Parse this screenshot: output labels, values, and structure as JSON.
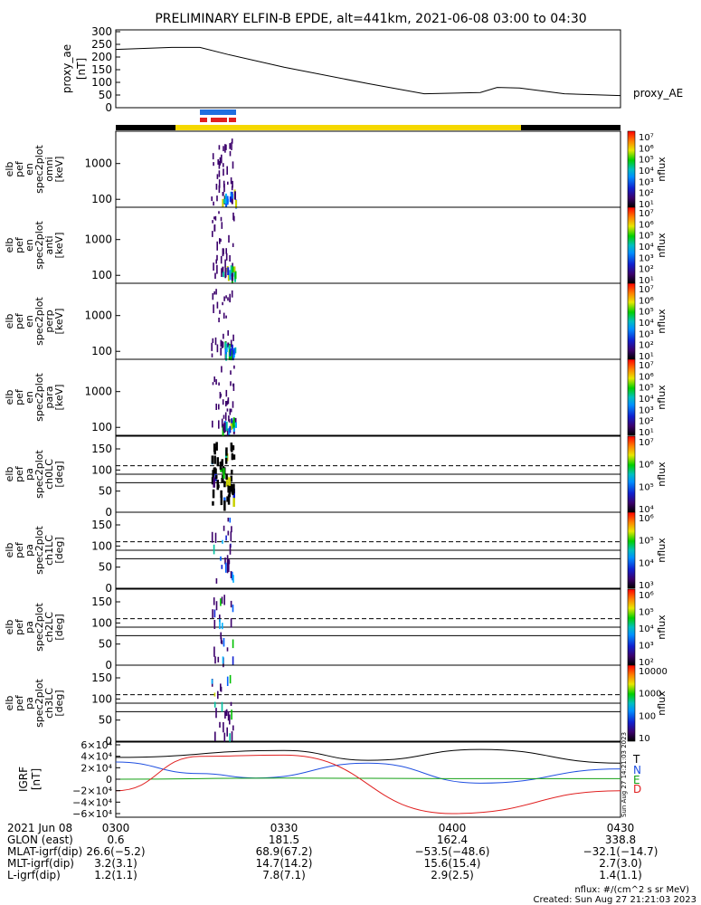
{
  "title": "PRELIMINARY ELFIN-B EPDE, alt=441km, 2021-06-08 03:00 to 04:30",
  "ae": {
    "ylabel": [
      "proxy_ae",
      "[nT]"
    ],
    "ticks": [
      "300",
      "250",
      "200",
      "150",
      "100",
      "50",
      "0"
    ],
    "legend": "proxy_AE"
  },
  "spec_panels": [
    {
      "ylabel": [
        "elb",
        "pef",
        "en",
        "spec2plot",
        "omni",
        "[keV]"
      ],
      "ticks": [
        "1000",
        "100"
      ],
      "cbar_ticks": [
        "10⁷",
        "10⁶",
        "10⁵",
        "10⁴",
        "10³",
        "10²",
        "10¹"
      ],
      "cbar_label": "nflux"
    },
    {
      "ylabel": [
        "elb",
        "pef",
        "en",
        "spec2plot",
        "anti",
        "[keV]"
      ],
      "ticks": [
        "1000",
        "100"
      ],
      "cbar_ticks": [
        "10⁷",
        "10⁶",
        "10⁵",
        "10⁴",
        "10³",
        "10²",
        "10¹"
      ],
      "cbar_label": "nflux"
    },
    {
      "ylabel": [
        "elb",
        "pef",
        "en",
        "spec2plot",
        "perp",
        "[keV]"
      ],
      "ticks": [
        "1000",
        "100"
      ],
      "cbar_ticks": [
        "10⁷",
        "10⁶",
        "10⁵",
        "10⁴",
        "10³",
        "10²",
        "10¹"
      ],
      "cbar_label": "nflux"
    },
    {
      "ylabel": [
        "elb",
        "pef",
        "en",
        "spec2plot",
        "para",
        "[keV]"
      ],
      "ticks": [
        "1000",
        "100"
      ],
      "cbar_ticks": [
        "10⁷",
        "10⁶",
        "10⁵",
        "10⁴",
        "10³",
        "10²",
        "10¹"
      ],
      "cbar_label": "nflux"
    }
  ],
  "pa_panels": [
    {
      "ylabel": [
        "elb",
        "pef",
        "pa",
        "spec2plot",
        "ch0LC",
        "[deg]"
      ],
      "ticks": [
        "150",
        "100",
        "50",
        "0"
      ],
      "cbar_ticks": [
        "10⁷",
        "10⁶",
        "10⁵",
        "10⁴"
      ],
      "cbar_label": "nflux"
    },
    {
      "ylabel": [
        "elb",
        "pef",
        "pa",
        "spec2plot",
        "ch1LC",
        "[deg]"
      ],
      "ticks": [
        "150",
        "100",
        "50",
        "0"
      ],
      "cbar_ticks": [
        "10⁶",
        "10⁵",
        "10⁴",
        "10³"
      ],
      "cbar_label": "nflux"
    },
    {
      "ylabel": [
        "elb",
        "pef",
        "pa",
        "spec2plot",
        "ch2LC",
        "[deg]"
      ],
      "ticks": [
        "150",
        "100",
        "50",
        "0"
      ],
      "cbar_ticks": [
        "10⁶",
        "10⁵",
        "10⁴",
        "10³",
        "10²"
      ],
      "cbar_label": "nflux"
    },
    {
      "ylabel": [
        "elb",
        "pef",
        "pa",
        "spec2plot",
        "ch3LC",
        "[deg]"
      ],
      "ticks": [
        "150",
        "100",
        "50",
        "0"
      ],
      "cbar_ticks": [
        "10000",
        "1000",
        "100",
        "10"
      ],
      "cbar_label": "nflux"
    }
  ],
  "igrf": {
    "ylabel": [
      "IGRF",
      "[nT]"
    ],
    "ticks": [
      "6×10⁴",
      "4×10⁴",
      "2×10⁴",
      "0",
      "−2×10⁴",
      "−4×10⁴",
      "−6×10⁴"
    ],
    "legend": [
      "T",
      "N",
      "E",
      "D"
    ],
    "stamp": "Sun Aug 27 14:21:03 2023"
  },
  "footer": {
    "rows": [
      [
        "2021 Jun 08",
        "0300",
        "0330",
        "0400",
        "0430"
      ],
      [
        "GLON (east)",
        "0.6",
        "181.5",
        "162.4",
        "338.8"
      ],
      [
        "MLAT-igrf(dip)",
        "26.6(−5.2)",
        "68.9(67.2)",
        "−53.5(−48.6)",
        "−32.1(−14.7)"
      ],
      [
        "MLT-igrf(dip)",
        "3.2(3.1)",
        "14.7(14.2)",
        "15.6(15.4)",
        "2.7(3.0)"
      ],
      [
        "L-igrf(dip)",
        "1.2(1.1)",
        "7.8(7.1)",
        "2.9(2.5)",
        "1.4(1.1)"
      ]
    ],
    "unit_note": "nflux: #/(cm^2 s sr MeV)",
    "created": "Created: Sun Aug 27 21:21:03 2023"
  },
  "colors": {
    "blue": "#1f6fe0",
    "red": "#e02020",
    "yellow": "#f5d800",
    "black": "#000000",
    "green": "#14a014"
  },
  "chart_data": [
    {
      "type": "line",
      "name": "proxy_ae",
      "x": [
        "0300",
        "0310",
        "0315",
        "0320",
        "0330",
        "0345",
        "0355",
        "0405",
        "0408",
        "0412",
        "0420",
        "0430"
      ],
      "values": [
        230,
        238,
        238,
        210,
        160,
        95,
        55,
        60,
        80,
        78,
        55,
        48
      ],
      "ylim": [
        0,
        300
      ]
    },
    {
      "type": "heatmap",
      "name": "ELFIN-B spectrograms",
      "xlim": [
        "0300",
        "0430"
      ],
      "active_window": [
        "0317",
        "0321"
      ]
    },
    {
      "type": "line",
      "name": "IGRF",
      "ylim": [
        -60000,
        60000
      ],
      "series": [
        {
          "name": "T",
          "x": [
            "0300",
            "0330",
            "0345",
            "0405",
            "0430"
          ],
          "values": [
            38000,
            50000,
            33000,
            52000,
            28000
          ]
        },
        {
          "name": "N",
          "x": [
            "0300",
            "0315",
            "0325",
            "0345",
            "0405",
            "0430"
          ],
          "values": [
            30000,
            10000,
            2000,
            28000,
            -7000,
            18000
          ]
        },
        {
          "name": "E",
          "x": [
            "0300",
            "0330",
            "0400",
            "0430"
          ],
          "values": [
            0,
            2000,
            1000,
            1000
          ]
        },
        {
          "name": "D",
          "x": [
            "0300",
            "0315",
            "0330",
            "0400",
            "0430"
          ],
          "values": [
            -20000,
            40000,
            42000,
            -60000,
            -20000
          ]
        }
      ]
    }
  ]
}
